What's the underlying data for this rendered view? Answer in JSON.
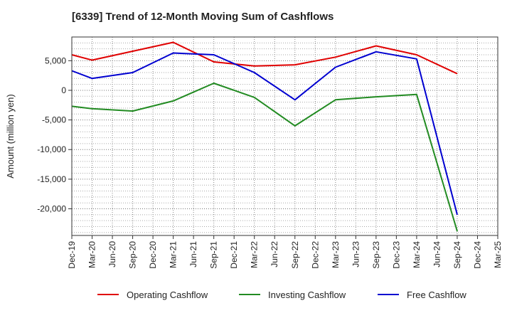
{
  "chart_data": {
    "type": "line",
    "title": "[6339]  Trend of 12-Month Moving Sum of Cashflows",
    "xlabel": "",
    "ylabel": "Amount (million yen)",
    "categories": [
      "Dec-19",
      "Mar-20",
      "Jun-20",
      "Sep-20",
      "Dec-20",
      "Mar-21",
      "Jun-21",
      "Sep-21",
      "Dec-21",
      "Mar-22",
      "Jun-22",
      "Sep-22",
      "Dec-22",
      "Mar-23",
      "Jun-23",
      "Sep-23",
      "Dec-23",
      "Mar-24",
      "Jun-24",
      "Sep-24",
      "Dec-24",
      "Mar-25"
    ],
    "ylim": [
      -24500,
      9000
    ],
    "yticks": [
      5000,
      0,
      -5000,
      -10000,
      -15000,
      -20000
    ],
    "ytick_labels": [
      "5,000",
      "0",
      "-5,000",
      "-10,000",
      "-15,000",
      "-20,000"
    ],
    "grid": true,
    "legend_position": "bottom",
    "series": [
      {
        "name": "Operating Cashflow",
        "color": "#e00000",
        "points": [
          [
            0,
            6000
          ],
          [
            1,
            5100
          ],
          [
            3,
            6600
          ],
          [
            5,
            8100
          ],
          [
            7,
            4800
          ],
          [
            9,
            4100
          ],
          [
            11,
            4300
          ],
          [
            13,
            5600
          ],
          [
            15,
            7500
          ],
          [
            17,
            6000
          ],
          [
            19,
            2800
          ]
        ]
      },
      {
        "name": "Investing Cashflow",
        "color": "#228b22",
        "points": [
          [
            0,
            -2700
          ],
          [
            1,
            -3100
          ],
          [
            3,
            -3500
          ],
          [
            5,
            -1800
          ],
          [
            7,
            1200
          ],
          [
            9,
            -1200
          ],
          [
            11,
            -6000
          ],
          [
            13,
            -1600
          ],
          [
            15,
            -1100
          ],
          [
            17,
            -700
          ],
          [
            19,
            -23800
          ]
        ]
      },
      {
        "name": "Free Cashflow",
        "color": "#0000d0",
        "points": [
          [
            0,
            3300
          ],
          [
            1,
            2000
          ],
          [
            3,
            3000
          ],
          [
            5,
            6300
          ],
          [
            7,
            6000
          ],
          [
            9,
            3000
          ],
          [
            11,
            -1600
          ],
          [
            13,
            3900
          ],
          [
            15,
            6500
          ],
          [
            17,
            5300
          ],
          [
            19,
            -21000
          ]
        ]
      }
    ]
  }
}
